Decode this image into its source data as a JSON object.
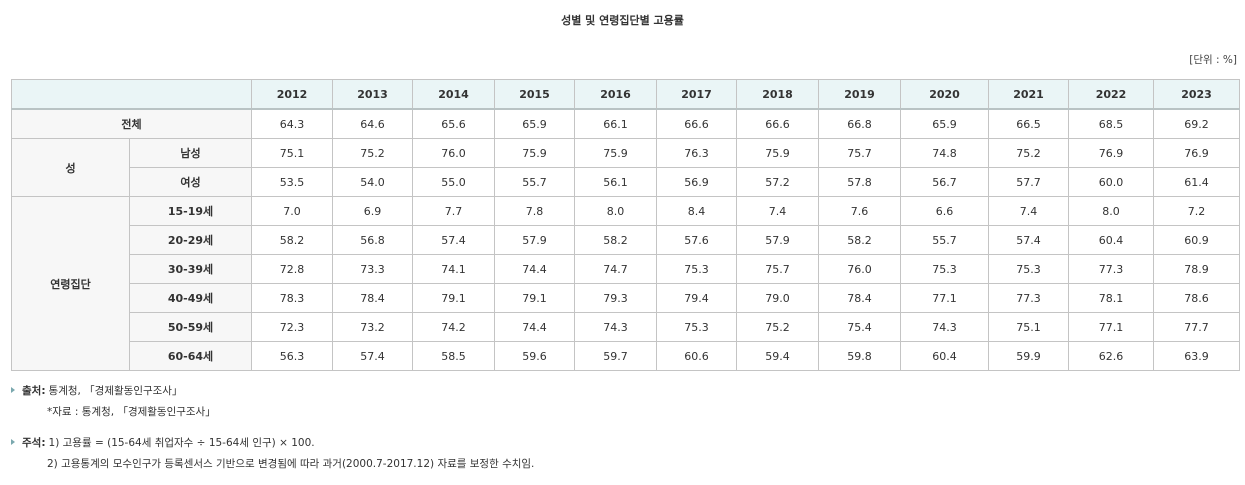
{
  "title": "성별 및 연령집단별 고용률",
  "unit_label": "[단위 : %]",
  "years": [
    "2012",
    "2013",
    "2014",
    "2015",
    "2016",
    "2017",
    "2018",
    "2019",
    "2020",
    "2021",
    "2022",
    "2023"
  ],
  "total": {
    "label": "전체",
    "values": [
      "64.3",
      "64.6",
      "65.6",
      "65.9",
      "66.1",
      "66.6",
      "66.6",
      "66.8",
      "65.9",
      "66.5",
      "68.5",
      "69.2"
    ]
  },
  "sex": {
    "label": "성",
    "rows": [
      {
        "label": "남성",
        "values": [
          "75.1",
          "75.2",
          "76.0",
          "75.9",
          "75.9",
          "76.3",
          "75.9",
          "75.7",
          "74.8",
          "75.2",
          "76.9",
          "76.9"
        ]
      },
      {
        "label": "여성",
        "values": [
          "53.5",
          "54.0",
          "55.0",
          "55.7",
          "56.1",
          "56.9",
          "57.2",
          "57.8",
          "56.7",
          "57.7",
          "60.0",
          "61.4"
        ]
      }
    ]
  },
  "age": {
    "label": "연령집단",
    "rows": [
      {
        "label": "15-19세",
        "values": [
          "7.0",
          "6.9",
          "7.7",
          "7.8",
          "8.0",
          "8.4",
          "7.4",
          "7.6",
          "6.6",
          "7.4",
          "8.0",
          "7.2"
        ]
      },
      {
        "label": "20-29세",
        "values": [
          "58.2",
          "56.8",
          "57.4",
          "57.9",
          "58.2",
          "57.6",
          "57.9",
          "58.2",
          "55.7",
          "57.4",
          "60.4",
          "60.9"
        ]
      },
      {
        "label": "30-39세",
        "values": [
          "72.8",
          "73.3",
          "74.1",
          "74.4",
          "74.7",
          "75.3",
          "75.7",
          "76.0",
          "75.3",
          "75.3",
          "77.3",
          "78.9"
        ]
      },
      {
        "label": "40-49세",
        "values": [
          "78.3",
          "78.4",
          "79.1",
          "79.1",
          "79.3",
          "79.4",
          "79.0",
          "78.4",
          "77.1",
          "77.3",
          "78.1",
          "78.6"
        ]
      },
      {
        "label": "50-59세",
        "values": [
          "72.3",
          "73.2",
          "74.2",
          "74.4",
          "74.3",
          "75.3",
          "75.2",
          "75.4",
          "74.3",
          "75.1",
          "77.1",
          "77.7"
        ]
      },
      {
        "label": "60-64세",
        "values": [
          "56.3",
          "57.4",
          "58.5",
          "59.6",
          "59.7",
          "60.6",
          "59.4",
          "59.8",
          "60.4",
          "59.9",
          "62.6",
          "63.9"
        ]
      }
    ]
  },
  "notes": {
    "source": {
      "label": "출처:",
      "text": "통계청, 「경제활동인구조사」",
      "sub": "*자료 : 통계청, 「경제활동인구조사」"
    },
    "remarks": {
      "label": "주석:",
      "lines": [
        "1) 고용률 = (15-64세 취업자수 ÷ 15-64세 인구) × 100.",
        "2) 고용통계의 모수인구가 등록센서스 기반으로 변경됨에 따라 과거(2000.7-2017.12) 자료를 보정한 수치임."
      ]
    }
  }
}
